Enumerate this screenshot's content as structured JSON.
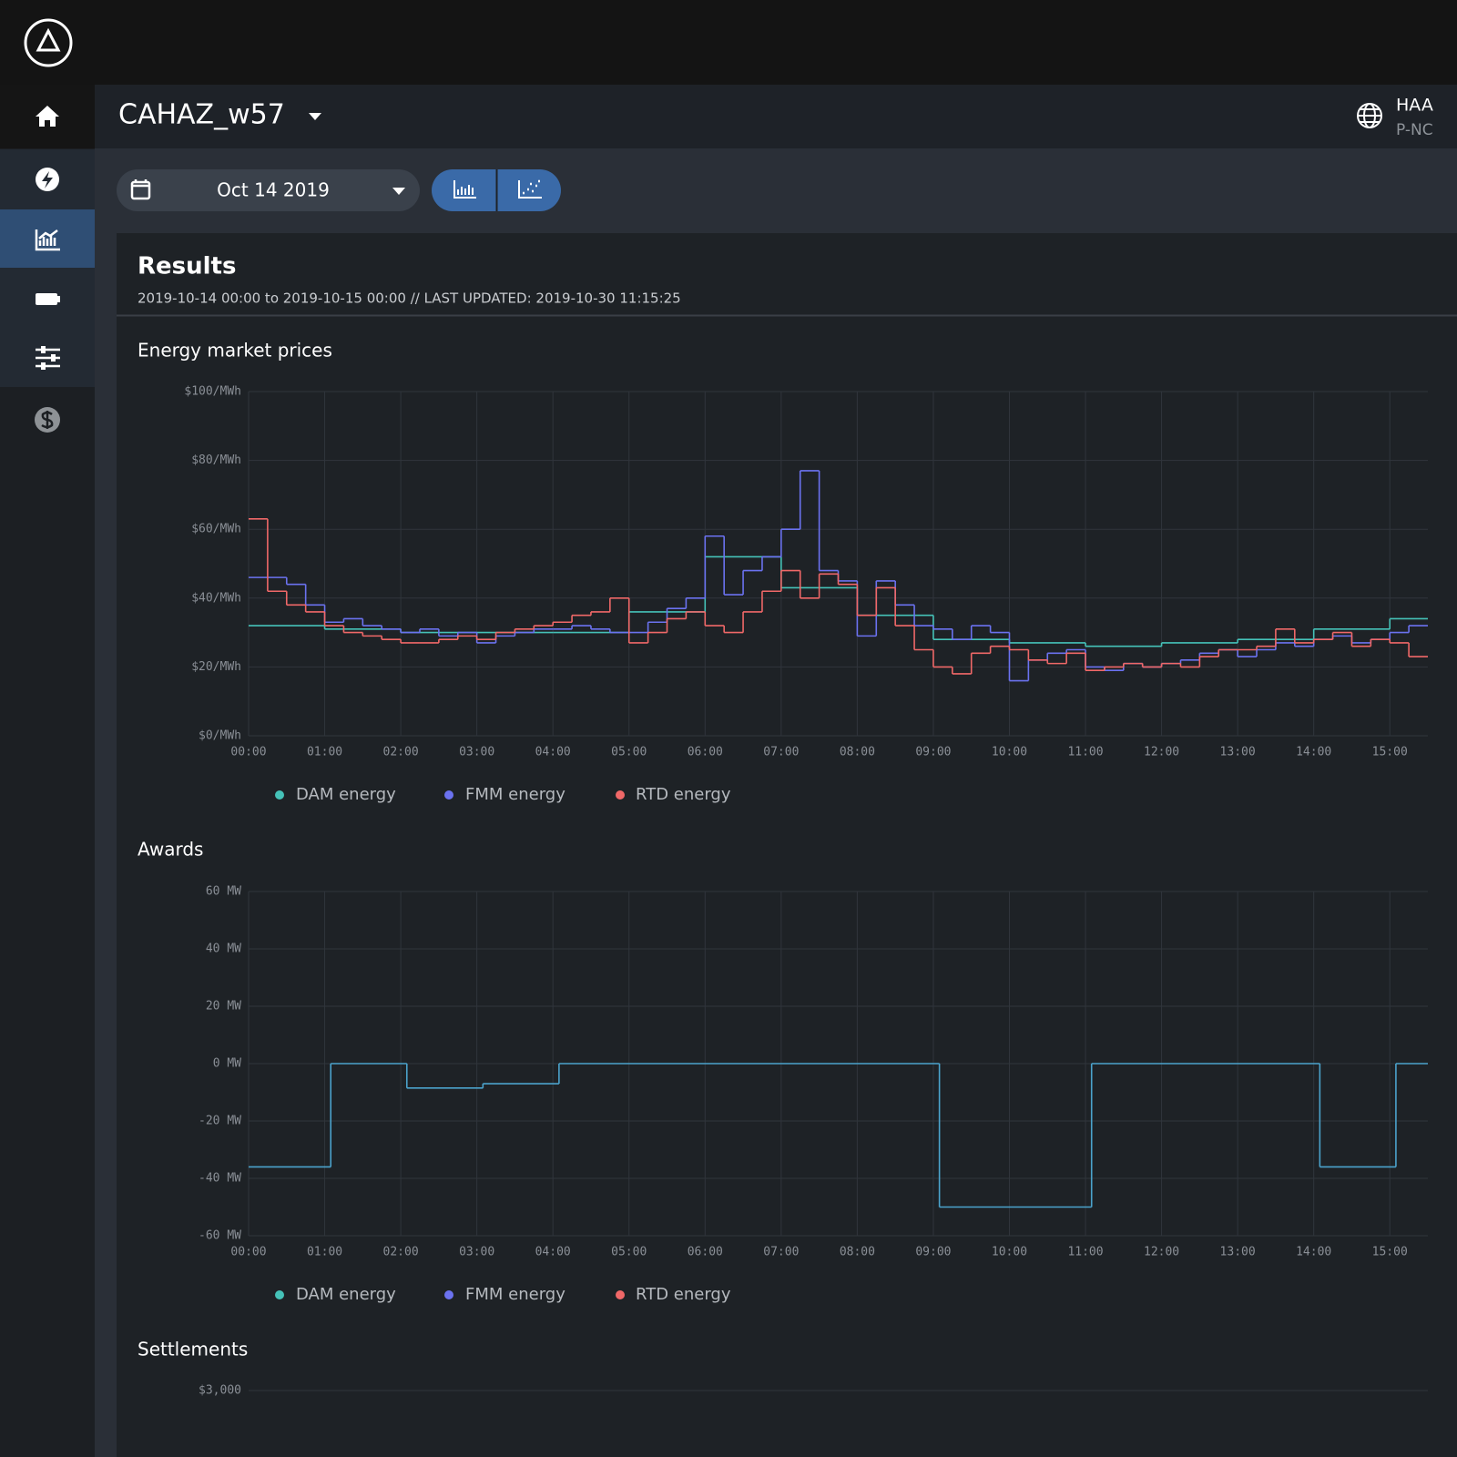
{
  "header": {
    "title": "CAHAZ_w57",
    "user_name": "HAA",
    "user_sub": "P-NC"
  },
  "toolbar": {
    "date": "Oct 14 2019"
  },
  "results": {
    "title": "Results",
    "subtitle": "2019-10-14 00:00 to 2019-10-15 00:00 // LAST UPDATED: 2019-10-30 11:15:25"
  },
  "chart_data": [
    {
      "type": "line",
      "step": true,
      "grid": true,
      "title": "Energy market prices",
      "xlim": [
        0,
        15.5
      ],
      "xticks": [
        {
          "value": 0,
          "label": "00:00"
        },
        {
          "value": 1,
          "label": "01:00"
        },
        {
          "value": 2,
          "label": "02:00"
        },
        {
          "value": 3,
          "label": "03:00"
        },
        {
          "value": 4,
          "label": "04:00"
        },
        {
          "value": 5,
          "label": "05:00"
        },
        {
          "value": 6,
          "label": "06:00"
        },
        {
          "value": 7,
          "label": "07:00"
        },
        {
          "value": 8,
          "label": "08:00"
        },
        {
          "value": 9,
          "label": "09:00"
        },
        {
          "value": 10,
          "label": "10:00"
        },
        {
          "value": 11,
          "label": "11:00"
        },
        {
          "value": 12,
          "label": "12:00"
        },
        {
          "value": 13,
          "label": "13:00"
        },
        {
          "value": 14,
          "label": "14:00"
        },
        {
          "value": 15,
          "label": "15:00"
        }
      ],
      "ylim": [
        0,
        100
      ],
      "yticks": [
        {
          "value": 0,
          "label": "$0/MWh"
        },
        {
          "value": 20,
          "label": "$20/MWh"
        },
        {
          "value": 40,
          "label": "$40/MWh"
        },
        {
          "value": 60,
          "label": "$60/MWh"
        },
        {
          "value": 80,
          "label": "$80/MWh"
        },
        {
          "value": 100,
          "label": "$100/MWh"
        }
      ],
      "series": [
        {
          "name": "DAM energy",
          "color": "#45c2b8",
          "x": [
            0,
            1,
            2,
            3,
            4,
            5,
            6,
            7,
            8,
            9,
            10,
            11,
            12,
            13,
            14,
            15
          ],
          "values": [
            32,
            31,
            30,
            30,
            30,
            36,
            52,
            43,
            35,
            28,
            27,
            26,
            27,
            28,
            31,
            34
          ]
        },
        {
          "name": "FMM energy",
          "color": "#6b72f0",
          "x": [
            0,
            0.25,
            0.5,
            0.75,
            1,
            1.25,
            1.5,
            1.75,
            2,
            2.25,
            2.5,
            2.75,
            3,
            3.25,
            3.5,
            3.75,
            4,
            4.25,
            4.5,
            4.75,
            5,
            5.25,
            5.5,
            5.75,
            6,
            6.25,
            6.5,
            6.75,
            7,
            7.25,
            7.5,
            7.75,
            8,
            8.25,
            8.5,
            8.75,
            9,
            9.25,
            9.5,
            9.75,
            10,
            10.25,
            10.5,
            10.75,
            11,
            11.25,
            11.5,
            11.75,
            12,
            12.25,
            12.5,
            12.75,
            13,
            13.25,
            13.5,
            13.75,
            14,
            14.25,
            14.5,
            14.75,
            15,
            15.25
          ],
          "values": [
            46,
            46,
            44,
            38,
            33,
            34,
            32,
            31,
            30,
            31,
            29,
            30,
            27,
            29,
            30,
            31,
            31,
            32,
            31,
            30,
            30,
            33,
            37,
            40,
            58,
            41,
            48,
            52,
            60,
            77,
            48,
            45,
            29,
            45,
            38,
            32,
            31,
            28,
            32,
            30,
            16,
            22,
            24,
            25,
            20,
            19,
            21,
            20,
            21,
            22,
            24,
            25,
            23,
            25,
            27,
            26,
            28,
            29,
            27,
            28,
            30,
            32
          ]
        },
        {
          "name": "RTD energy",
          "color": "#f06868",
          "x": [
            0,
            0.25,
            0.5,
            0.75,
            1,
            1.25,
            1.5,
            1.75,
            2,
            2.25,
            2.5,
            2.75,
            3,
            3.25,
            3.5,
            3.75,
            4,
            4.25,
            4.5,
            4.75,
            5,
            5.25,
            5.5,
            5.75,
            6,
            6.25,
            6.5,
            6.75,
            7,
            7.25,
            7.5,
            7.75,
            8,
            8.25,
            8.5,
            8.75,
            9,
            9.25,
            9.5,
            9.75,
            10,
            10.25,
            10.5,
            10.75,
            11,
            11.25,
            11.5,
            11.75,
            12,
            12.25,
            12.5,
            12.75,
            13,
            13.25,
            13.5,
            13.75,
            14,
            14.25,
            14.5,
            14.75,
            15,
            15.25
          ],
          "values": [
            63,
            42,
            38,
            36,
            32,
            30,
            29,
            28,
            27,
            27,
            28,
            29,
            28,
            30,
            31,
            32,
            33,
            35,
            36,
            40,
            27,
            30,
            34,
            36,
            32,
            30,
            36,
            42,
            48,
            40,
            47,
            44,
            35,
            43,
            32,
            25,
            20,
            18,
            24,
            26,
            25,
            22,
            21,
            24,
            19,
            20,
            21,
            20,
            21,
            20,
            23,
            25,
            25,
            26,
            31,
            27,
            28,
            30,
            26,
            28,
            27,
            23
          ]
        }
      ]
    },
    {
      "type": "line",
      "step": true,
      "grid": true,
      "title": "Awards",
      "xlim": [
        0,
        15.5
      ],
      "xticks": [
        {
          "value": 0,
          "label": "00:00"
        },
        {
          "value": 1,
          "label": "01:00"
        },
        {
          "value": 2,
          "label": "02:00"
        },
        {
          "value": 3,
          "label": "03:00"
        },
        {
          "value": 4,
          "label": "04:00"
        },
        {
          "value": 5,
          "label": "05:00"
        },
        {
          "value": 6,
          "label": "06:00"
        },
        {
          "value": 7,
          "label": "07:00"
        },
        {
          "value": 8,
          "label": "08:00"
        },
        {
          "value": 9,
          "label": "09:00"
        },
        {
          "value": 10,
          "label": "10:00"
        },
        {
          "value": 11,
          "label": "11:00"
        },
        {
          "value": 12,
          "label": "12:00"
        },
        {
          "value": 13,
          "label": "13:00"
        },
        {
          "value": 14,
          "label": "14:00"
        },
        {
          "value": 15,
          "label": "15:00"
        }
      ],
      "ylim": [
        -60,
        60
      ],
      "yticks": [
        {
          "value": -60,
          "label": "-60 MW"
        },
        {
          "value": -40,
          "label": "-40 MW"
        },
        {
          "value": -20,
          "label": "-20 MW"
        },
        {
          "value": 0,
          "label": "0 MW"
        },
        {
          "value": 20,
          "label": "20 MW"
        },
        {
          "value": 40,
          "label": "40 MW"
        },
        {
          "value": 60,
          "label": "60 MW"
        }
      ],
      "series": [
        {
          "name": "DAM energy",
          "color": "#45c2b8",
          "line_color": "#4ba3cc",
          "x": [
            0,
            1.08,
            2.08,
            3.08,
            4.08,
            9.08,
            11.08,
            14.08,
            15.08
          ],
          "values": [
            -36,
            0,
            -8.5,
            -7,
            0,
            -50,
            0,
            -36,
            0
          ]
        },
        {
          "name": "FMM energy",
          "color": "#6b72f0",
          "x": [],
          "values": []
        },
        {
          "name": "RTD energy",
          "color": "#f06868",
          "x": [],
          "values": []
        }
      ]
    },
    {
      "type": "line",
      "grid": true,
      "title": "Settlements",
      "yticks": [
        {
          "value": 3000,
          "label": "$3,000"
        }
      ]
    }
  ]
}
